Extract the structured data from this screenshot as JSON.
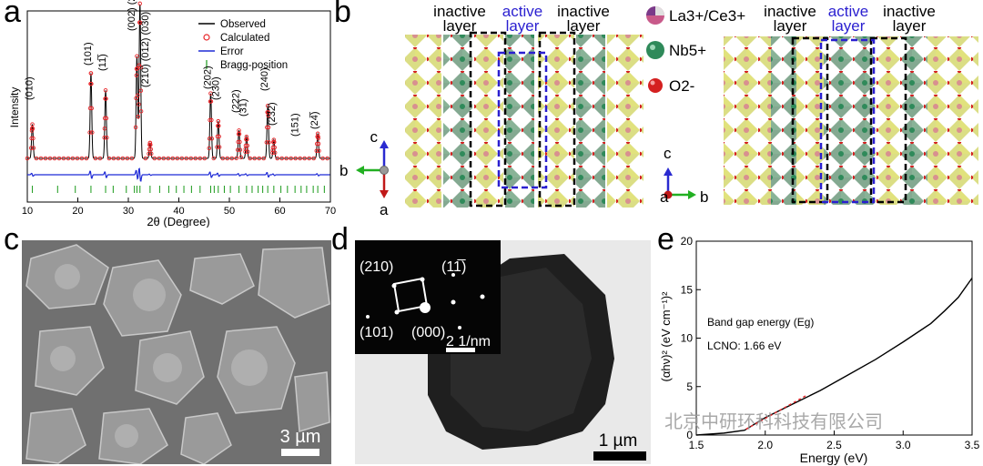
{
  "panels": {
    "a": {
      "letter": "a",
      "ylabel": "Intensity",
      "xlabel": "2θ (Degree)",
      "xticks": [
        "10",
        "20",
        "30",
        "40",
        "50",
        "60",
        "70"
      ],
      "legend": [
        {
          "label": "Observed",
          "color": "#000000",
          "kind": "line"
        },
        {
          "label": "Calculated",
          "color": "#e8262a",
          "kind": "circle"
        },
        {
          "label": "Error",
          "color": "#1f2bd6",
          "kind": "line"
        },
        {
          "label": "Bragg-position",
          "color": "#1a9a1a",
          "kind": "tick"
        }
      ],
      "peak_labels": [
        "(010)",
        "(101)",
        "(11̅)",
        "(002) (200) (121) (12̅)",
        "(210) (012) (030)",
        "(202)",
        "(230)",
        "(222)",
        "(31̅)",
        "(240)",
        "(232)",
        "(151)",
        "(24̅)"
      ]
    },
    "b": {
      "letter": "b",
      "inactive": "inactive",
      "active": "active",
      "layer": "layer",
      "legend": [
        {
          "label": "La3+/Ce3+",
          "color": "#c85a8a"
        },
        {
          "label": "Nb5+",
          "color": "#2f8a5a"
        },
        {
          "label": "O2-",
          "color": "#d42020"
        }
      ],
      "axes_left": {
        "c": "c",
        "b": "b",
        "a": "a"
      },
      "axes_right": {
        "c": "c",
        "a": "a",
        "b": "b"
      }
    },
    "c": {
      "letter": "c",
      "scale": "3 µm"
    },
    "d": {
      "letter": "d",
      "scale": "1 µm",
      "saed_scale": "2 1/nm",
      "spots": [
        "(210)",
        "(11̅)",
        "(101)",
        "(000)"
      ]
    },
    "e": {
      "letter": "e",
      "ylabel": "(αhν)² (eV cm⁻¹)²",
      "xlabel": "Energy (eV)",
      "annotation1": "Band gap energy (Eg)",
      "annotation2": "LCNO: 1.66 eV",
      "watermark": "北京中研环科科技有限公司"
    }
  },
  "chart_data": [
    {
      "type": "line",
      "panel": "a",
      "xlabel": "2θ (Degree)",
      "ylabel": "Intensity",
      "xlim": [
        10,
        70
      ],
      "peaks": [
        {
          "x": 11.0,
          "h": 0.22
        },
        {
          "x": 22.6,
          "h": 0.55
        },
        {
          "x": 25.5,
          "h": 0.44
        },
        {
          "x": 31.7,
          "h": 0.66
        },
        {
          "x": 32.3,
          "h": 1.0
        },
        {
          "x": 34.3,
          "h": 0.1
        },
        {
          "x": 46.3,
          "h": 0.42
        },
        {
          "x": 47.8,
          "h": 0.24
        },
        {
          "x": 51.9,
          "h": 0.18
        },
        {
          "x": 53.4,
          "h": 0.14
        },
        {
          "x": 57.6,
          "h": 0.34
        },
        {
          "x": 58.8,
          "h": 0.12
        },
        {
          "x": 67.5,
          "h": 0.16
        }
      ],
      "bragg": [
        11.0,
        16.0,
        19.5,
        22.6,
        25.5,
        27.0,
        29.6,
        31.2,
        31.7,
        32.3,
        34.3,
        36.2,
        38.0,
        39.5,
        41.0,
        42.5,
        44.2,
        46.3,
        47.0,
        47.8,
        49.0,
        50.2,
        51.9,
        53.4,
        54.5,
        55.7,
        56.6,
        57.6,
        58.8,
        60.2,
        61.5,
        63.0,
        64.2,
        65.3,
        66.6,
        67.5,
        68.8
      ]
    },
    {
      "type": "line",
      "panel": "e",
      "xlabel": "Energy (eV)",
      "ylabel": "(αhν)² (eV cm⁻¹)²",
      "xlim": [
        1.5,
        3.5
      ],
      "ylim": [
        0,
        20
      ],
      "xticks": [
        1.5,
        2.0,
        2.5,
        3.0,
        3.5
      ],
      "yticks": [
        0,
        5,
        10,
        15,
        20
      ],
      "x": [
        1.5,
        1.7,
        1.85,
        2.0,
        2.2,
        2.4,
        2.6,
        2.8,
        3.0,
        3.2,
        3.3,
        3.4,
        3.5
      ],
      "y": [
        0.0,
        0.2,
        0.5,
        1.8,
        3.2,
        4.6,
        6.2,
        7.8,
        9.6,
        11.5,
        12.8,
        14.2,
        16.2
      ],
      "fit": {
        "x": [
          1.86,
          2.3
        ],
        "y": [
          0.6,
          4.1
        ]
      }
    }
  ]
}
